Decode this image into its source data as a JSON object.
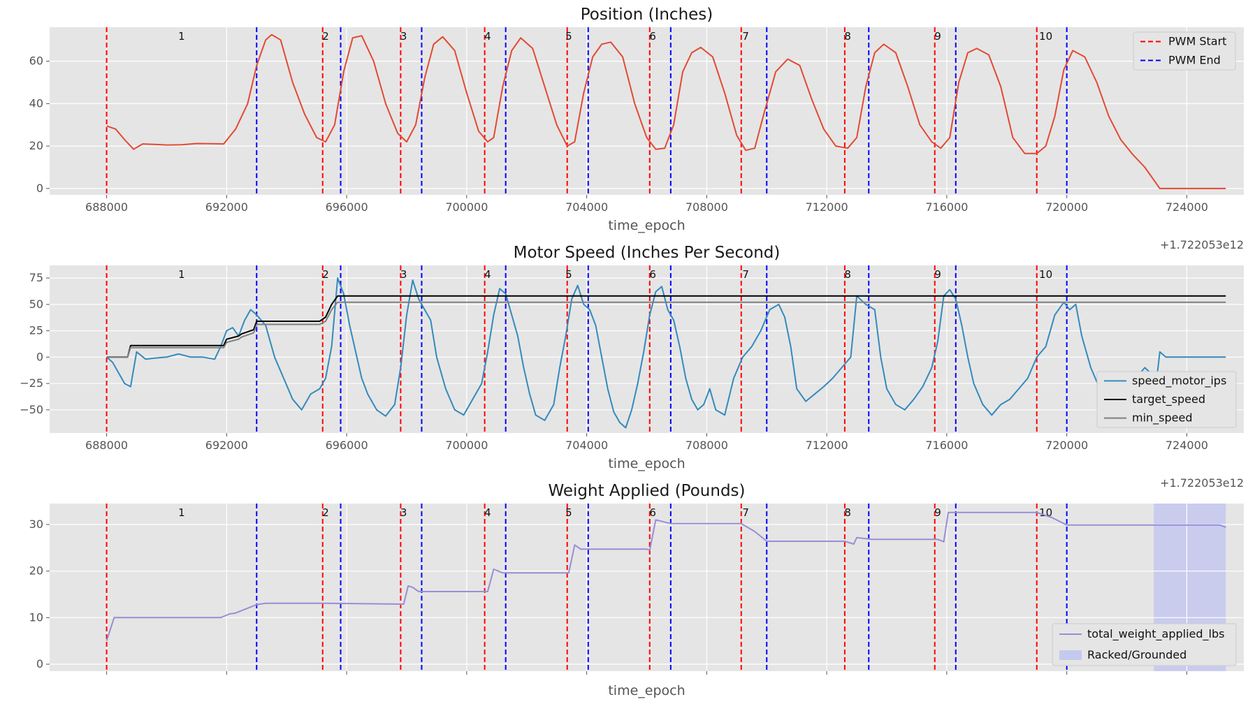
{
  "chart_data": [
    {
      "id": "position",
      "type": "line",
      "title": "Position (Inches)",
      "xlabel": "time_epoch",
      "x_offset_label": "+1.722053e12",
      "xlim": [
        686100,
        725900
      ],
      "ylim": [
        -3,
        76
      ],
      "x_ticks": [
        688000,
        692000,
        696000,
        700000,
        704000,
        708000,
        712000,
        716000,
        720000,
        724000
      ],
      "x_tick_labels": [
        "688000",
        "692000",
        "696000",
        "700000",
        "704000",
        "708000",
        "712000",
        "716000",
        "720000",
        "724000"
      ],
      "y_ticks": [
        0,
        20,
        40,
        60
      ],
      "y_tick_labels": [
        "0",
        "20",
        "40",
        "60"
      ],
      "pwm_start": [
        688000,
        695200,
        697800,
        700600,
        703350,
        706100,
        709150,
        712600,
        715600,
        719000
      ],
      "pwm_end": [
        693000,
        695800,
        698500,
        701300,
        704050,
        706800,
        710000,
        713400,
        716300,
        720000
      ],
      "rep_labels": [
        "1",
        "2",
        "3",
        "4",
        "5",
        "6",
        "7",
        "8",
        "9",
        "10"
      ],
      "rep_label_x": [
        690500,
        695300,
        697900,
        700700,
        703400,
        706200,
        709300,
        712700,
        715700,
        719300
      ],
      "legend": [
        "PWM Start",
        "PWM End"
      ],
      "series": [
        {
          "name": "position",
          "color": "#E24A33",
          "x": [
            688000,
            688300,
            688600,
            688900,
            689200,
            689600,
            690000,
            690500,
            691000,
            691500,
            691900,
            692300,
            692700,
            693000,
            693300,
            693500,
            693800,
            694200,
            694600,
            695000,
            695300,
            695600,
            695900,
            696200,
            696500,
            696900,
            697300,
            697700,
            698000,
            698300,
            698600,
            698900,
            699200,
            699600,
            700000,
            700400,
            700700,
            700900,
            701200,
            701500,
            701800,
            702200,
            702600,
            703000,
            703350,
            703600,
            703900,
            704200,
            704500,
            704800,
            705200,
            705600,
            706000,
            706300,
            706600,
            706900,
            707200,
            707500,
            707800,
            708200,
            708600,
            709000,
            709300,
            709600,
            709900,
            710300,
            710700,
            711100,
            711500,
            711900,
            712300,
            712700,
            713000,
            713300,
            713600,
            713900,
            714300,
            714700,
            715100,
            715500,
            715800,
            716100,
            716400,
            716700,
            717000,
            717400,
            717800,
            718200,
            718600,
            719000,
            719300,
            719600,
            719900,
            720200,
            720600,
            721000,
            721400,
            721800,
            722200,
            722600,
            722900,
            723100,
            723500,
            724000,
            724500,
            725300
          ],
          "y": [
            29.5,
            28,
            23,
            18.5,
            21,
            20.8,
            20.5,
            20.6,
            21.2,
            21.1,
            21,
            28,
            40,
            58,
            70,
            72.5,
            70,
            50,
            35,
            24,
            22,
            30,
            55,
            71,
            72,
            60,
            40,
            26,
            22,
            30,
            52,
            68,
            71.5,
            65,
            45,
            27,
            22,
            24,
            48,
            65,
            71,
            66,
            48,
            30,
            20,
            22,
            45,
            62,
            68,
            69,
            62,
            40,
            24,
            18.5,
            19,
            30,
            55,
            64,
            66.5,
            62,
            45,
            25,
            18,
            19,
            35,
            55,
            61,
            58,
            42,
            28,
            20,
            19,
            24,
            48,
            64,
            68,
            64,
            48,
            30,
            22,
            19,
            24,
            50,
            64,
            66,
            63,
            48,
            24,
            16.5,
            16.5,
            20,
            34,
            56,
            65,
            62,
            50,
            34,
            23,
            16,
            10,
            4,
            0,
            0,
            0,
            0,
            0
          ]
        }
      ]
    },
    {
      "id": "speed",
      "type": "line",
      "title": "Motor Speed (Inches Per Second)",
      "xlabel": "time_epoch",
      "x_offset_label": "+1.722053e12",
      "xlim": [
        686100,
        725900
      ],
      "ylim": [
        -72,
        87
      ],
      "x_ticks": [
        688000,
        692000,
        696000,
        700000,
        704000,
        708000,
        712000,
        716000,
        720000,
        724000
      ],
      "x_tick_labels": [
        "688000",
        "692000",
        "696000",
        "700000",
        "704000",
        "708000",
        "712000",
        "716000",
        "720000",
        "724000"
      ],
      "y_ticks": [
        -50,
        -25,
        0,
        25,
        50,
        75
      ],
      "y_tick_labels": [
        "−50",
        "−25",
        "0",
        "25",
        "50",
        "75"
      ],
      "pwm_start": [
        688000,
        695200,
        697800,
        700600,
        703350,
        706100,
        709150,
        712600,
        715600,
        719000
      ],
      "pwm_end": [
        693000,
        695800,
        698500,
        701300,
        704050,
        706800,
        710000,
        713400,
        716300,
        720000
      ],
      "rep_labels": [
        "1",
        "2",
        "3",
        "4",
        "5",
        "6",
        "7",
        "8",
        "9",
        "10"
      ],
      "rep_label_x": [
        690500,
        695300,
        697900,
        700700,
        703400,
        706200,
        709300,
        712700,
        715700,
        719300
      ],
      "legend": [
        "speed_motor_ips",
        "target_speed",
        "min_speed"
      ],
      "series": [
        {
          "name": "speed_motor_ips",
          "color": "#348ABD",
          "x": [
            688000,
            688200,
            688400,
            688600,
            688800,
            689000,
            689300,
            689600,
            690000,
            690400,
            690800,
            691200,
            691600,
            691800,
            692000,
            692200,
            692400,
            692600,
            692800,
            693000,
            693300,
            693600,
            693900,
            694200,
            694500,
            694800,
            695100,
            695300,
            695500,
            695700,
            695900,
            696100,
            696300,
            696500,
            696700,
            697000,
            697300,
            697600,
            697800,
            698000,
            698200,
            698400,
            698600,
            698800,
            699000,
            699300,
            699600,
            699900,
            700200,
            700500,
            700700,
            700900,
            701100,
            701300,
            701500,
            701700,
            701900,
            702100,
            702300,
            702600,
            702900,
            703100,
            703300,
            703500,
            703700,
            703900,
            704100,
            704300,
            704500,
            704700,
            704900,
            705100,
            705300,
            705500,
            705700,
            705900,
            706100,
            706300,
            706500,
            706700,
            706900,
            707100,
            707300,
            707500,
            707700,
            707900,
            708100,
            708300,
            708600,
            708900,
            709200,
            709500,
            709800,
            710100,
            710400,
            710600,
            710800,
            711000,
            711300,
            711600,
            711900,
            712200,
            712500,
            712800,
            713000,
            713300,
            713600,
            713800,
            714000,
            714300,
            714600,
            714900,
            715200,
            715500,
            715700,
            715900,
            716100,
            716300,
            716500,
            716700,
            716900,
            717200,
            717500,
            717800,
            718100,
            718400,
            718700,
            719000,
            719300,
            719600,
            719900,
            720100,
            720300,
            720500,
            720800,
            721100,
            721400,
            721700,
            722000,
            722300,
            722600,
            722900,
            723000,
            723100,
            723300,
            723600,
            724000,
            724500,
            725300
          ],
          "y": [
            0,
            -5,
            -15,
            -25,
            -28,
            5,
            -2,
            -1,
            0,
            3,
            0,
            0,
            -2,
            10,
            25,
            28,
            20,
            35,
            45,
            40,
            30,
            0,
            -20,
            -40,
            -50,
            -35,
            -30,
            -20,
            10,
            75,
            60,
            30,
            5,
            -20,
            -35,
            -50,
            -56,
            -45,
            -10,
            40,
            73,
            55,
            45,
            35,
            0,
            -30,
            -50,
            -55,
            -40,
            -25,
            5,
            40,
            65,
            60,
            40,
            20,
            -10,
            -35,
            -55,
            -60,
            -45,
            -10,
            20,
            55,
            68,
            50,
            45,
            30,
            0,
            -30,
            -52,
            -62,
            -67,
            -50,
            -25,
            5,
            40,
            62,
            67,
            45,
            35,
            10,
            -20,
            -40,
            -50,
            -45,
            -30,
            -50,
            -55,
            -20,
            0,
            10,
            25,
            45,
            50,
            38,
            10,
            -30,
            -42,
            -35,
            -28,
            -20,
            -10,
            0,
            58,
            50,
            45,
            0,
            -30,
            -45,
            -50,
            -40,
            -28,
            -10,
            15,
            58,
            64,
            55,
            30,
            0,
            -25,
            -45,
            -55,
            -45,
            -40,
            -30,
            -20,
            0,
            10,
            40,
            52,
            45,
            50,
            20,
            -10,
            -30,
            -40,
            -45,
            -35,
            -20,
            -10,
            -18,
            -20,
            5,
            0,
            0,
            0,
            0,
            0
          ]
        },
        {
          "name": "target_speed",
          "color": "#000000",
          "x": [
            688000,
            688700,
            688800,
            691900,
            692000,
            692400,
            692500,
            692900,
            693000,
            695100,
            695300,
            695500,
            695700,
            725300
          ],
          "y": [
            0,
            0,
            11,
            11,
            17,
            20,
            22,
            26,
            34,
            34,
            38,
            50,
            58,
            58
          ]
        },
        {
          "name": "min_speed",
          "color": "#7f7f7f",
          "x": [
            688000,
            688700,
            688800,
            691900,
            692000,
            692400,
            692500,
            692900,
            693000,
            695100,
            695300,
            695500,
            695700,
            725300
          ],
          "y": [
            0,
            0,
            9,
            9,
            14,
            17,
            19,
            23,
            31,
            31,
            34,
            45,
            52,
            52
          ]
        }
      ]
    },
    {
      "id": "weight",
      "type": "line",
      "title": "Weight Applied (Pounds)",
      "xlabel": "time_epoch",
      "x_offset_label": "",
      "xlim": [
        686100,
        725900
      ],
      "ylim": [
        -1.5,
        34.5
      ],
      "x_ticks": [
        688000,
        692000,
        696000,
        700000,
        704000,
        708000,
        712000,
        716000,
        720000,
        724000
      ],
      "x_tick_labels": [],
      "y_ticks": [
        0,
        10,
        20,
        30
      ],
      "y_tick_labels": [
        "0",
        "10",
        "20",
        "30"
      ],
      "pwm_start": [
        688000,
        695200,
        697800,
        700600,
        703350,
        706100,
        709150,
        712600,
        715600,
        719000
      ],
      "pwm_end": [
        693000,
        695800,
        698500,
        701300,
        704050,
        706800,
        710000,
        713400,
        716300,
        720000
      ],
      "rep_labels": [
        "1",
        "2",
        "3",
        "4",
        "5",
        "6",
        "7",
        "8",
        "9",
        "10"
      ],
      "rep_label_x": [
        690500,
        695300,
        697900,
        700700,
        703400,
        706200,
        709300,
        712700,
        715700,
        719300
      ],
      "legend": [
        "total_weight_applied_lbs",
        "Racked/Grounded"
      ],
      "shaded_span": [
        722900,
        725300
      ],
      "series": [
        {
          "name": "total_weight_applied_lbs",
          "color": "#988ED5",
          "x": [
            688000,
            688250,
            691800,
            692100,
            692300,
            693000,
            693300,
            695200,
            697900,
            698050,
            698200,
            698400,
            700700,
            700900,
            701200,
            703400,
            703600,
            703800,
            706000,
            706100,
            706300,
            706800,
            709150,
            709600,
            710000,
            712600,
            712900,
            713000,
            713500,
            715700,
            715900,
            716050,
            716300,
            719000,
            719500,
            720000,
            725100,
            725300
          ],
          "y": [
            5,
            10,
            10,
            10.8,
            11,
            12.8,
            13.1,
            13.1,
            12.9,
            16.8,
            16.5,
            15.6,
            15.6,
            20.4,
            19.6,
            19.6,
            25.6,
            24.7,
            24.7,
            24.5,
            31,
            30.2,
            30.2,
            28.5,
            26.4,
            26.4,
            25.8,
            27.2,
            26.8,
            26.8,
            26.3,
            32.6,
            32.6,
            32.6,
            31.5,
            29.9,
            29.9,
            29.4
          ]
        }
      ]
    }
  ]
}
